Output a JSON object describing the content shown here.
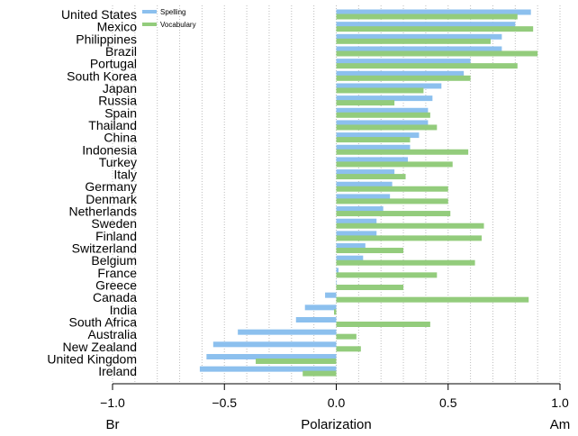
{
  "colors": {
    "spelling": "#8cc0ee",
    "vocabulary": "#93cc7c",
    "grid": "#bdbdbd",
    "axis": "#000000"
  },
  "chart_data": {
    "type": "bar",
    "orientation": "horizontal",
    "categories": [
      "United States",
      "Mexico",
      "Philippines",
      "Brazil",
      "Portugal",
      "South Korea",
      "Japan",
      "Russia",
      "Spain",
      "Thailand",
      "China",
      "Indonesia",
      "Turkey",
      "Italy",
      "Germany",
      "Denmark",
      "Netherlands",
      "Sweden",
      "Finland",
      "Switzerland",
      "Belgium",
      "France",
      "Greece",
      "Canada",
      "India",
      "South Africa",
      "Australia",
      "New Zealand",
      "United Kingdom",
      "Ireland"
    ],
    "series": [
      {
        "name": "Spelling",
        "color": "#8cc0ee",
        "values": [
          0.87,
          0.8,
          0.74,
          0.74,
          0.6,
          0.57,
          0.47,
          0.43,
          0.41,
          0.41,
          0.37,
          0.33,
          0.32,
          0.26,
          0.25,
          0.24,
          0.21,
          0.18,
          0.18,
          0.13,
          0.12,
          0.01,
          0.0,
          -0.05,
          -0.14,
          -0.18,
          -0.44,
          -0.55,
          -0.58,
          -0.61
        ]
      },
      {
        "name": "Vocabulary",
        "color": "#93cc7c",
        "values": [
          0.81,
          0.88,
          0.69,
          0.9,
          0.81,
          0.6,
          0.39,
          0.26,
          0.42,
          0.45,
          0.33,
          0.59,
          0.52,
          0.31,
          0.5,
          0.5,
          0.51,
          0.66,
          0.65,
          0.3,
          0.62,
          0.45,
          0.3,
          0.86,
          -0.01,
          0.42,
          0.09,
          0.11,
          -0.36,
          -0.15
        ]
      }
    ],
    "xlim": [
      -1.0,
      1.0
    ],
    "xticks": [
      -1.0,
      -0.5,
      0.0,
      0.5,
      1.0
    ],
    "xtick_labels": [
      "−1.0",
      "−0.5",
      "0.0",
      "0.5",
      "1.0"
    ],
    "xlabel": "Polarization",
    "left_end_label": "Br",
    "right_end_label": "Am",
    "grid": "dotted-vertical",
    "legend_position": "top-left"
  }
}
